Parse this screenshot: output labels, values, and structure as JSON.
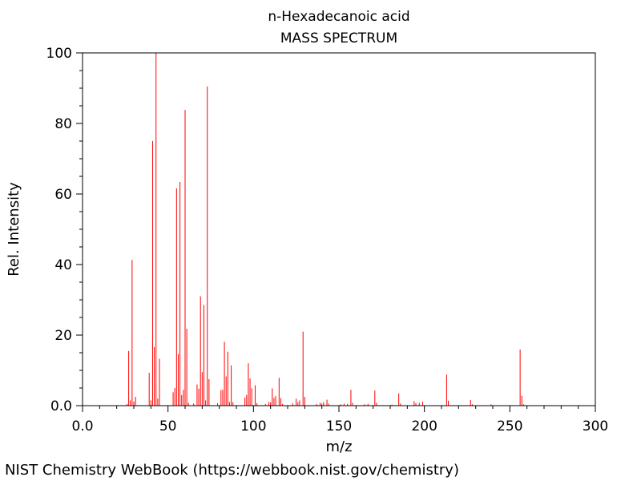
{
  "chart_data": {
    "type": "bar",
    "title": "n-Hexadecanoic acid",
    "subtitle": "MASS SPECTRUM",
    "xlabel": "m/z",
    "ylabel": "Rel. Intensity",
    "xlim": [
      0,
      300
    ],
    "ylim": [
      0,
      100
    ],
    "xticks": [
      "0.0",
      "50",
      "100",
      "150",
      "200",
      "250",
      "300"
    ],
    "yticks": [
      "0.0",
      "20",
      "40",
      "60",
      "80",
      "100"
    ],
    "grid": false,
    "bar_color": "#ff0000",
    "peaks": [
      {
        "mz": 26,
        "intensity": 0.5
      },
      {
        "mz": 27,
        "intensity": 15.5
      },
      {
        "mz": 28,
        "intensity": 1.5
      },
      {
        "mz": 29,
        "intensity": 41.3
      },
      {
        "mz": 30,
        "intensity": 1.2
      },
      {
        "mz": 31,
        "intensity": 2.5
      },
      {
        "mz": 39,
        "intensity": 9.3
      },
      {
        "mz": 40,
        "intensity": 1.5
      },
      {
        "mz": 41,
        "intensity": 75.0
      },
      {
        "mz": 42,
        "intensity": 16.6
      },
      {
        "mz": 43,
        "intensity": 100.0
      },
      {
        "mz": 44,
        "intensity": 2.0
      },
      {
        "mz": 45,
        "intensity": 13.3
      },
      {
        "mz": 53,
        "intensity": 3.8
      },
      {
        "mz": 54,
        "intensity": 5.0
      },
      {
        "mz": 55,
        "intensity": 61.6
      },
      {
        "mz": 56,
        "intensity": 14.6
      },
      {
        "mz": 57,
        "intensity": 63.4
      },
      {
        "mz": 58,
        "intensity": 3.0
      },
      {
        "mz": 59,
        "intensity": 4.5
      },
      {
        "mz": 60,
        "intensity": 83.8
      },
      {
        "mz": 61,
        "intensity": 21.8
      },
      {
        "mz": 62,
        "intensity": 0.8
      },
      {
        "mz": 65,
        "intensity": 0.6
      },
      {
        "mz": 67,
        "intensity": 6.0
      },
      {
        "mz": 68,
        "intensity": 4.8
      },
      {
        "mz": 69,
        "intensity": 31.0
      },
      {
        "mz": 70,
        "intensity": 9.5
      },
      {
        "mz": 71,
        "intensity": 28.5
      },
      {
        "mz": 72,
        "intensity": 1.5
      },
      {
        "mz": 73,
        "intensity": 90.5
      },
      {
        "mz": 74,
        "intensity": 7.5
      },
      {
        "mz": 79,
        "intensity": 0.7
      },
      {
        "mz": 81,
        "intensity": 4.4
      },
      {
        "mz": 82,
        "intensity": 4.5
      },
      {
        "mz": 83,
        "intensity": 18.1
      },
      {
        "mz": 84,
        "intensity": 8.3
      },
      {
        "mz": 85,
        "intensity": 15.3
      },
      {
        "mz": 86,
        "intensity": 1.0
      },
      {
        "mz": 87,
        "intensity": 11.4
      },
      {
        "mz": 88,
        "intensity": 1.0
      },
      {
        "mz": 95,
        "intensity": 2.3
      },
      {
        "mz": 96,
        "intensity": 3.0
      },
      {
        "mz": 97,
        "intensity": 12.0
      },
      {
        "mz": 98,
        "intensity": 7.7
      },
      {
        "mz": 99,
        "intensity": 4.9
      },
      {
        "mz": 101,
        "intensity": 5.8
      },
      {
        "mz": 102,
        "intensity": 0.7
      },
      {
        "mz": 107,
        "intensity": 0.5
      },
      {
        "mz": 109,
        "intensity": 1.0
      },
      {
        "mz": 110,
        "intensity": 1.0
      },
      {
        "mz": 111,
        "intensity": 4.9
      },
      {
        "mz": 112,
        "intensity": 2.2
      },
      {
        "mz": 113,
        "intensity": 2.7
      },
      {
        "mz": 115,
        "intensity": 7.9
      },
      {
        "mz": 116,
        "intensity": 2.1
      },
      {
        "mz": 117,
        "intensity": 0.5
      },
      {
        "mz": 123,
        "intensity": 0.6
      },
      {
        "mz": 125,
        "intensity": 2.0
      },
      {
        "mz": 126,
        "intensity": 1.0
      },
      {
        "mz": 127,
        "intensity": 1.5
      },
      {
        "mz": 129,
        "intensity": 21.0
      },
      {
        "mz": 130,
        "intensity": 2.5
      },
      {
        "mz": 137,
        "intensity": 0.5
      },
      {
        "mz": 139,
        "intensity": 0.8
      },
      {
        "mz": 140,
        "intensity": 0.6
      },
      {
        "mz": 141,
        "intensity": 1.0
      },
      {
        "mz": 143,
        "intensity": 1.7
      },
      {
        "mz": 144,
        "intensity": 0.6
      },
      {
        "mz": 151,
        "intensity": 0.4
      },
      {
        "mz": 153,
        "intensity": 0.6
      },
      {
        "mz": 155,
        "intensity": 0.5
      },
      {
        "mz": 157,
        "intensity": 4.5
      },
      {
        "mz": 158,
        "intensity": 0.8
      },
      {
        "mz": 165,
        "intensity": 0.4
      },
      {
        "mz": 167,
        "intensity": 0.5
      },
      {
        "mz": 171,
        "intensity": 4.3
      },
      {
        "mz": 172,
        "intensity": 0.8
      },
      {
        "mz": 181,
        "intensity": 0.3
      },
      {
        "mz": 185,
        "intensity": 3.5
      },
      {
        "mz": 186,
        "intensity": 0.6
      },
      {
        "mz": 194,
        "intensity": 1.3
      },
      {
        "mz": 195,
        "intensity": 0.7
      },
      {
        "mz": 197,
        "intensity": 0.8
      },
      {
        "mz": 199,
        "intensity": 1.1
      },
      {
        "mz": 213,
        "intensity": 8.8
      },
      {
        "mz": 214,
        "intensity": 1.4
      },
      {
        "mz": 227,
        "intensity": 1.6
      },
      {
        "mz": 228,
        "intensity": 0.4
      },
      {
        "mz": 239,
        "intensity": 0.4
      },
      {
        "mz": 256,
        "intensity": 15.9
      },
      {
        "mz": 257,
        "intensity": 2.8
      },
      {
        "mz": 258,
        "intensity": 0.4
      }
    ]
  },
  "footer": "NIST Chemistry WebBook (https://webbook.nist.gov/chemistry)"
}
